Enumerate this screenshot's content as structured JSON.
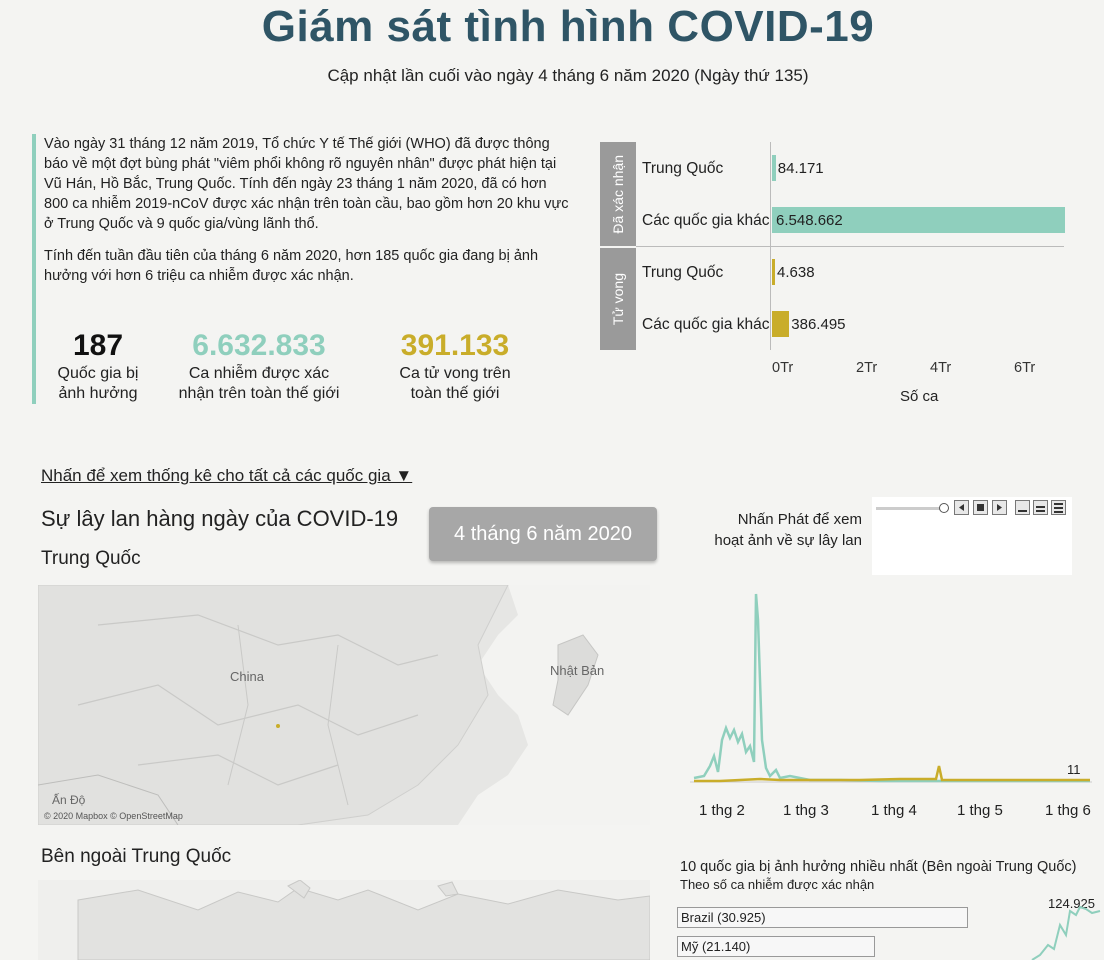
{
  "header": {
    "title": "Giám sát tình hình COVID-19",
    "subtitle": "Cập nhật lần cuối vào ngày 4 tháng 6 năm 2020 (Ngày thứ 135)"
  },
  "intro": {
    "p1": "Vào ngày 31 tháng 12 năm 2019, Tổ chức Y tế Thế giới (WHO) đã được thông báo về một đợt bùng phát \"viêm phổi không rõ nguyên nhân\" được phát hiện tại Vũ Hán, Hồ Bắc, Trung Quốc. Tính đến ngày 23 tháng 1 năm 2020, đã có hơn 800 ca nhiễm 2019-nCoV được xác nhận trên toàn cầu, bao gồm hơn 20 khu vực ở Trung Quốc và 9 quốc gia/vùng lãnh thổ.",
    "p2": "Tính đến tuần đầu tiên của tháng 6 năm 2020, hơn 185 quốc gia đang bị ảnh hưởng với hơn 6 triệu ca nhiễm được xác nhận."
  },
  "stats": [
    {
      "value": "187",
      "label1": "Quốc gia bị",
      "label2": "ảnh hưởng",
      "color": "#111111"
    },
    {
      "value": "6.632.833",
      "label1": "Ca nhiễm được xác",
      "label2": "nhận trên toàn thế giới",
      "color": "#8fcfbd"
    },
    {
      "value": "391.133",
      "label1": "Ca tử vong trên",
      "label2": "toàn thế giới",
      "color": "#c9ad2a"
    }
  ],
  "bars": {
    "confirmed_band": "Đã xác nhận",
    "deaths_band": "Tử vong",
    "axis_title": "Số ca",
    "ticks": [
      "0Tr",
      "2Tr",
      "4Tr",
      "6Tr"
    ]
  },
  "controls": {
    "link": "Nhấn để xem thống kê cho tất cả các quốc gia ▼",
    "section_title": "Sự lây lan hàng ngày của COVID-19",
    "date": "4 tháng 6 năm 2020",
    "play_hint_1": "Nhấn Phát để xem",
    "play_hint_2": "hoạt ảnh về sự lây lan"
  },
  "maps": {
    "china_title": "Trung Quốc",
    "outside_title": "Bên ngoài Trung Quốc",
    "label_china": "China",
    "label_japan": "Nhật Bản",
    "label_india": "Ấn Độ",
    "credit": "© 2020 Mapbox © OpenStreetMap"
  },
  "line_chart": {
    "end_value": "11",
    "xticks": [
      "1 thg 2",
      "1 thg 3",
      "1 thg 4",
      "1 thg 5",
      "1 thg 6"
    ]
  },
  "top10": {
    "title": "10 quốc gia bị ảnh hưởng nhiều nhất (Bên ngoài Trung Quốc)",
    "subtitle": "Theo số ca nhiễm được xác nhận",
    "peak": "124.925",
    "items": [
      {
        "label": "Brazil (30.925)",
        "share": 1.0
      },
      {
        "label": "Mỹ (21.140)",
        "share": 0.68
      }
    ]
  },
  "chart_data": {
    "type": "bar",
    "orientation": "horizontal",
    "title": "",
    "xlabel": "Số ca",
    "xlim": [
      0,
      7000000
    ],
    "groups": [
      {
        "name": "Đã xác nhận",
        "categories": [
          "Trung Quốc",
          "Các quốc gia khác"
        ],
        "values": [
          84171,
          6548662
        ],
        "labels": [
          "84.171",
          "6.548.662"
        ],
        "color": "#8fcfbd"
      },
      {
        "name": "Tử vong",
        "categories": [
          "Trung Quốc",
          "Các quốc gia khác"
        ],
        "values": [
          4638,
          386495
        ],
        "labels": [
          "4.638",
          "386.495"
        ],
        "color": "#c9ad2a"
      }
    ]
  }
}
